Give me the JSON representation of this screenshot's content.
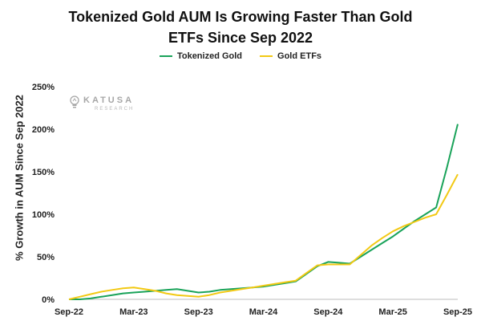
{
  "title_line1": "Tokenized Gold AUM Is Growing Faster Than Gold",
  "title_line2": "ETFs Since Sep 2022",
  "logo": {
    "name": "KATUSA",
    "sub": "RESEARCH",
    "icon": "lightbulb-icon"
  },
  "chart_data": {
    "type": "line",
    "title": "Tokenized Gold AUM Is Growing Faster Than Gold ETFs Since Sep 2022",
    "ylabel": "% Growth in AUM Since Sep 2022",
    "xlabel": "",
    "x": [
      "Sep-22",
      "Oct-22",
      "Nov-22",
      "Dec-22",
      "Jan-23",
      "Feb-23",
      "Mar-23",
      "Apr-23",
      "May-23",
      "Jun-23",
      "Jul-23",
      "Aug-23",
      "Sep-23",
      "Oct-23",
      "Nov-23",
      "Dec-23",
      "Jan-24",
      "Feb-24",
      "Mar-24",
      "Apr-24",
      "May-24",
      "Jun-24",
      "Jul-24",
      "Aug-24",
      "Sep-24",
      "Oct-24",
      "Nov-24",
      "Dec-24",
      "Jan-25",
      "Feb-25",
      "Mar-25",
      "Apr-25",
      "May-25",
      "Jun-25",
      "Jul-25",
      "Aug-25",
      "Sep-25"
    ],
    "x_tick_labels": [
      "Sep-22",
      "Mar-23",
      "Sep-23",
      "Mar-24",
      "Sep-24",
      "Mar-25",
      "Sep-25"
    ],
    "y_tick_labels": [
      "0%",
      "50%",
      "100%",
      "150%",
      "200%",
      "250%"
    ],
    "ylim": [
      0,
      250
    ],
    "grid": false,
    "legend_position": "top-center",
    "series": [
      {
        "name": "Tokenized Gold",
        "color": "#1aa35a",
        "values": [
          0,
          0,
          1,
          3,
          5,
          7,
          8,
          9,
          10,
          11,
          12,
          10,
          8,
          9,
          11,
          12,
          13,
          14,
          15,
          17,
          19,
          21,
          30,
          39,
          44,
          43,
          42,
          50,
          58,
          66,
          74,
          83,
          92,
          100,
          108,
          155,
          206
        ]
      },
      {
        "name": "Gold ETFs",
        "color": "#f2c914",
        "values": [
          0,
          3,
          6,
          9,
          11,
          13,
          14,
          12,
          10,
          7,
          5,
          4,
          3,
          5,
          8,
          10,
          12,
          14,
          16,
          18,
          20,
          22,
          31,
          40,
          41,
          41,
          41,
          52,
          63,
          72,
          80,
          86,
          91,
          96,
          100,
          123,
          147
        ]
      }
    ]
  }
}
